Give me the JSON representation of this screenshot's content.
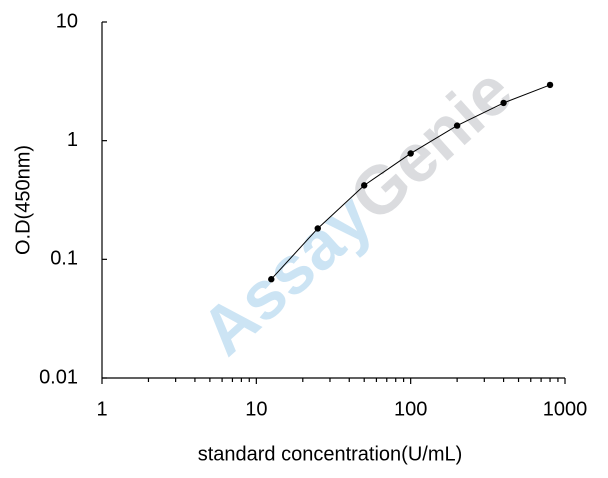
{
  "chart_data": {
    "type": "line",
    "x_label": "standard concentration(U/mL)",
    "y_label": "O.D(450nm)",
    "watermark": [
      "Assay",
      "Genie"
    ],
    "x": [
      12.5,
      25,
      50,
      100,
      200,
      400,
      800
    ],
    "series": [
      {
        "color": "#000000",
        "values": [
          0.068,
          0.182,
          0.42,
          0.78,
          1.34,
          2.08,
          2.95
        ]
      }
    ],
    "xscale": "log",
    "yscale": "log",
    "xlim": [
      1,
      1000
    ],
    "ylim": [
      0.01,
      10
    ],
    "xticks": [
      1,
      10,
      100,
      1000
    ],
    "yticks": [
      0.01,
      0.1,
      1,
      10
    ],
    "grid": false
  }
}
